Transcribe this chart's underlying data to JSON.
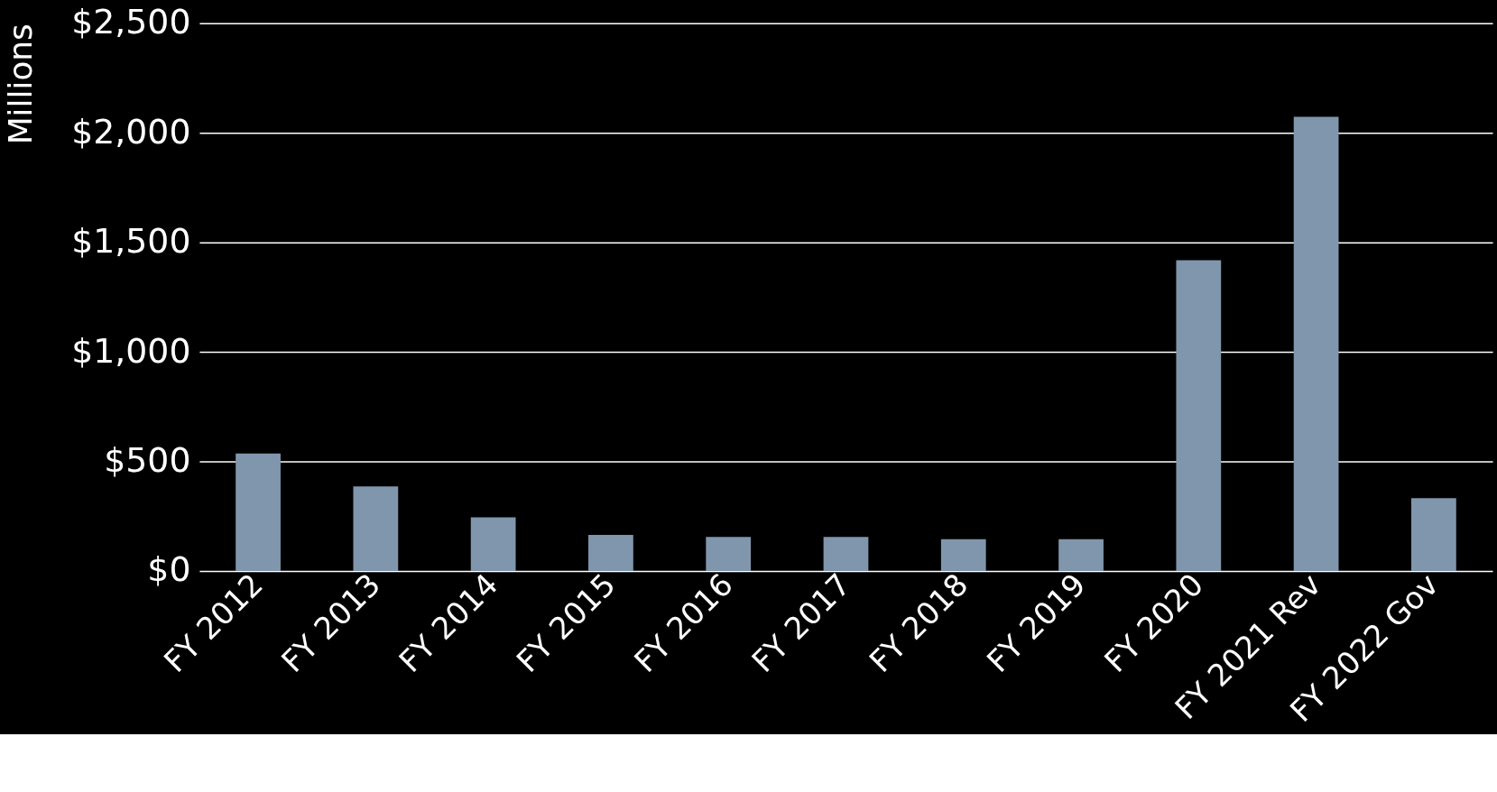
{
  "chart_data": {
    "type": "bar",
    "ylabel": "Millions",
    "categories": [
      "FY 2012",
      "FY 2013",
      "FY 2014",
      "FY 2015",
      "FY 2016",
      "FY 2017",
      "FY 2018",
      "FY 2019",
      "FY 2020",
      "FY 2021 Rev",
      "FY 2022 Gov"
    ],
    "values": [
      536,
      386,
      245,
      164,
      155,
      155,
      145,
      145,
      1418,
      2073,
      332
    ],
    "color": "#8096ac",
    "ylim": [
      0,
      2500
    ],
    "yticks": [
      {
        "value": 0,
        "label": "$0"
      },
      {
        "value": 500,
        "label": "$500"
      },
      {
        "value": 1000,
        "label": "$1,000"
      },
      {
        "value": 1500,
        "label": "$1,500"
      },
      {
        "value": 2000,
        "label": "$2,000"
      },
      {
        "value": 2500,
        "label": "$2,500"
      }
    ],
    "grid": "y"
  }
}
